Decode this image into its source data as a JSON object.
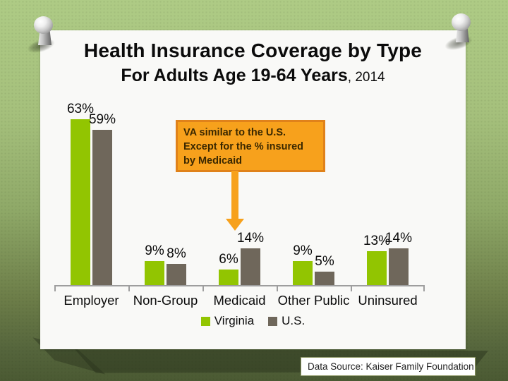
{
  "slide": {
    "title": "Health Insurance Coverage by Type",
    "subtitle": "For Adults Age 19-64 Years",
    "subtitle_year": ", 2014"
  },
  "callout": {
    "text": "VA similar to the U.S.\nExcept for the % insured\nby Medicaid"
  },
  "chart_data": {
    "type": "bar",
    "categories": [
      "Employer",
      "Non-Group",
      "Medicaid",
      "Other Public",
      "Uninsured"
    ],
    "series": [
      {
        "name": "Virginia",
        "color": "#92c501",
        "values": [
          63,
          9,
          6,
          9,
          13
        ]
      },
      {
        "name": "U.S.",
        "color": "#6f675b",
        "values": [
          59,
          8,
          14,
          5,
          14
        ]
      }
    ],
    "value_suffix": "%",
    "title": "Health Insurance Coverage by Type, Adults 19-64, 2014",
    "xlabel": "",
    "ylabel": "",
    "ylim": [
      0,
      70
    ],
    "grid": false,
    "legend_position": "bottom",
    "annotation": "VA similar to the U.S. Except for the % insured by Medicaid"
  },
  "footer": {
    "data_source": "Data Source: Kaiser Family Foundation"
  },
  "colors": {
    "virginia_green": "#92c501",
    "us_gray": "#6f675b",
    "axis_gray": "#9e9e9e",
    "callout_fill": "#f7a11c",
    "callout_border": "#e0821a",
    "callout_text": "#3a2800",
    "background_green_top": "#aecb85",
    "background_green_bottom": "#4b5a33"
  }
}
